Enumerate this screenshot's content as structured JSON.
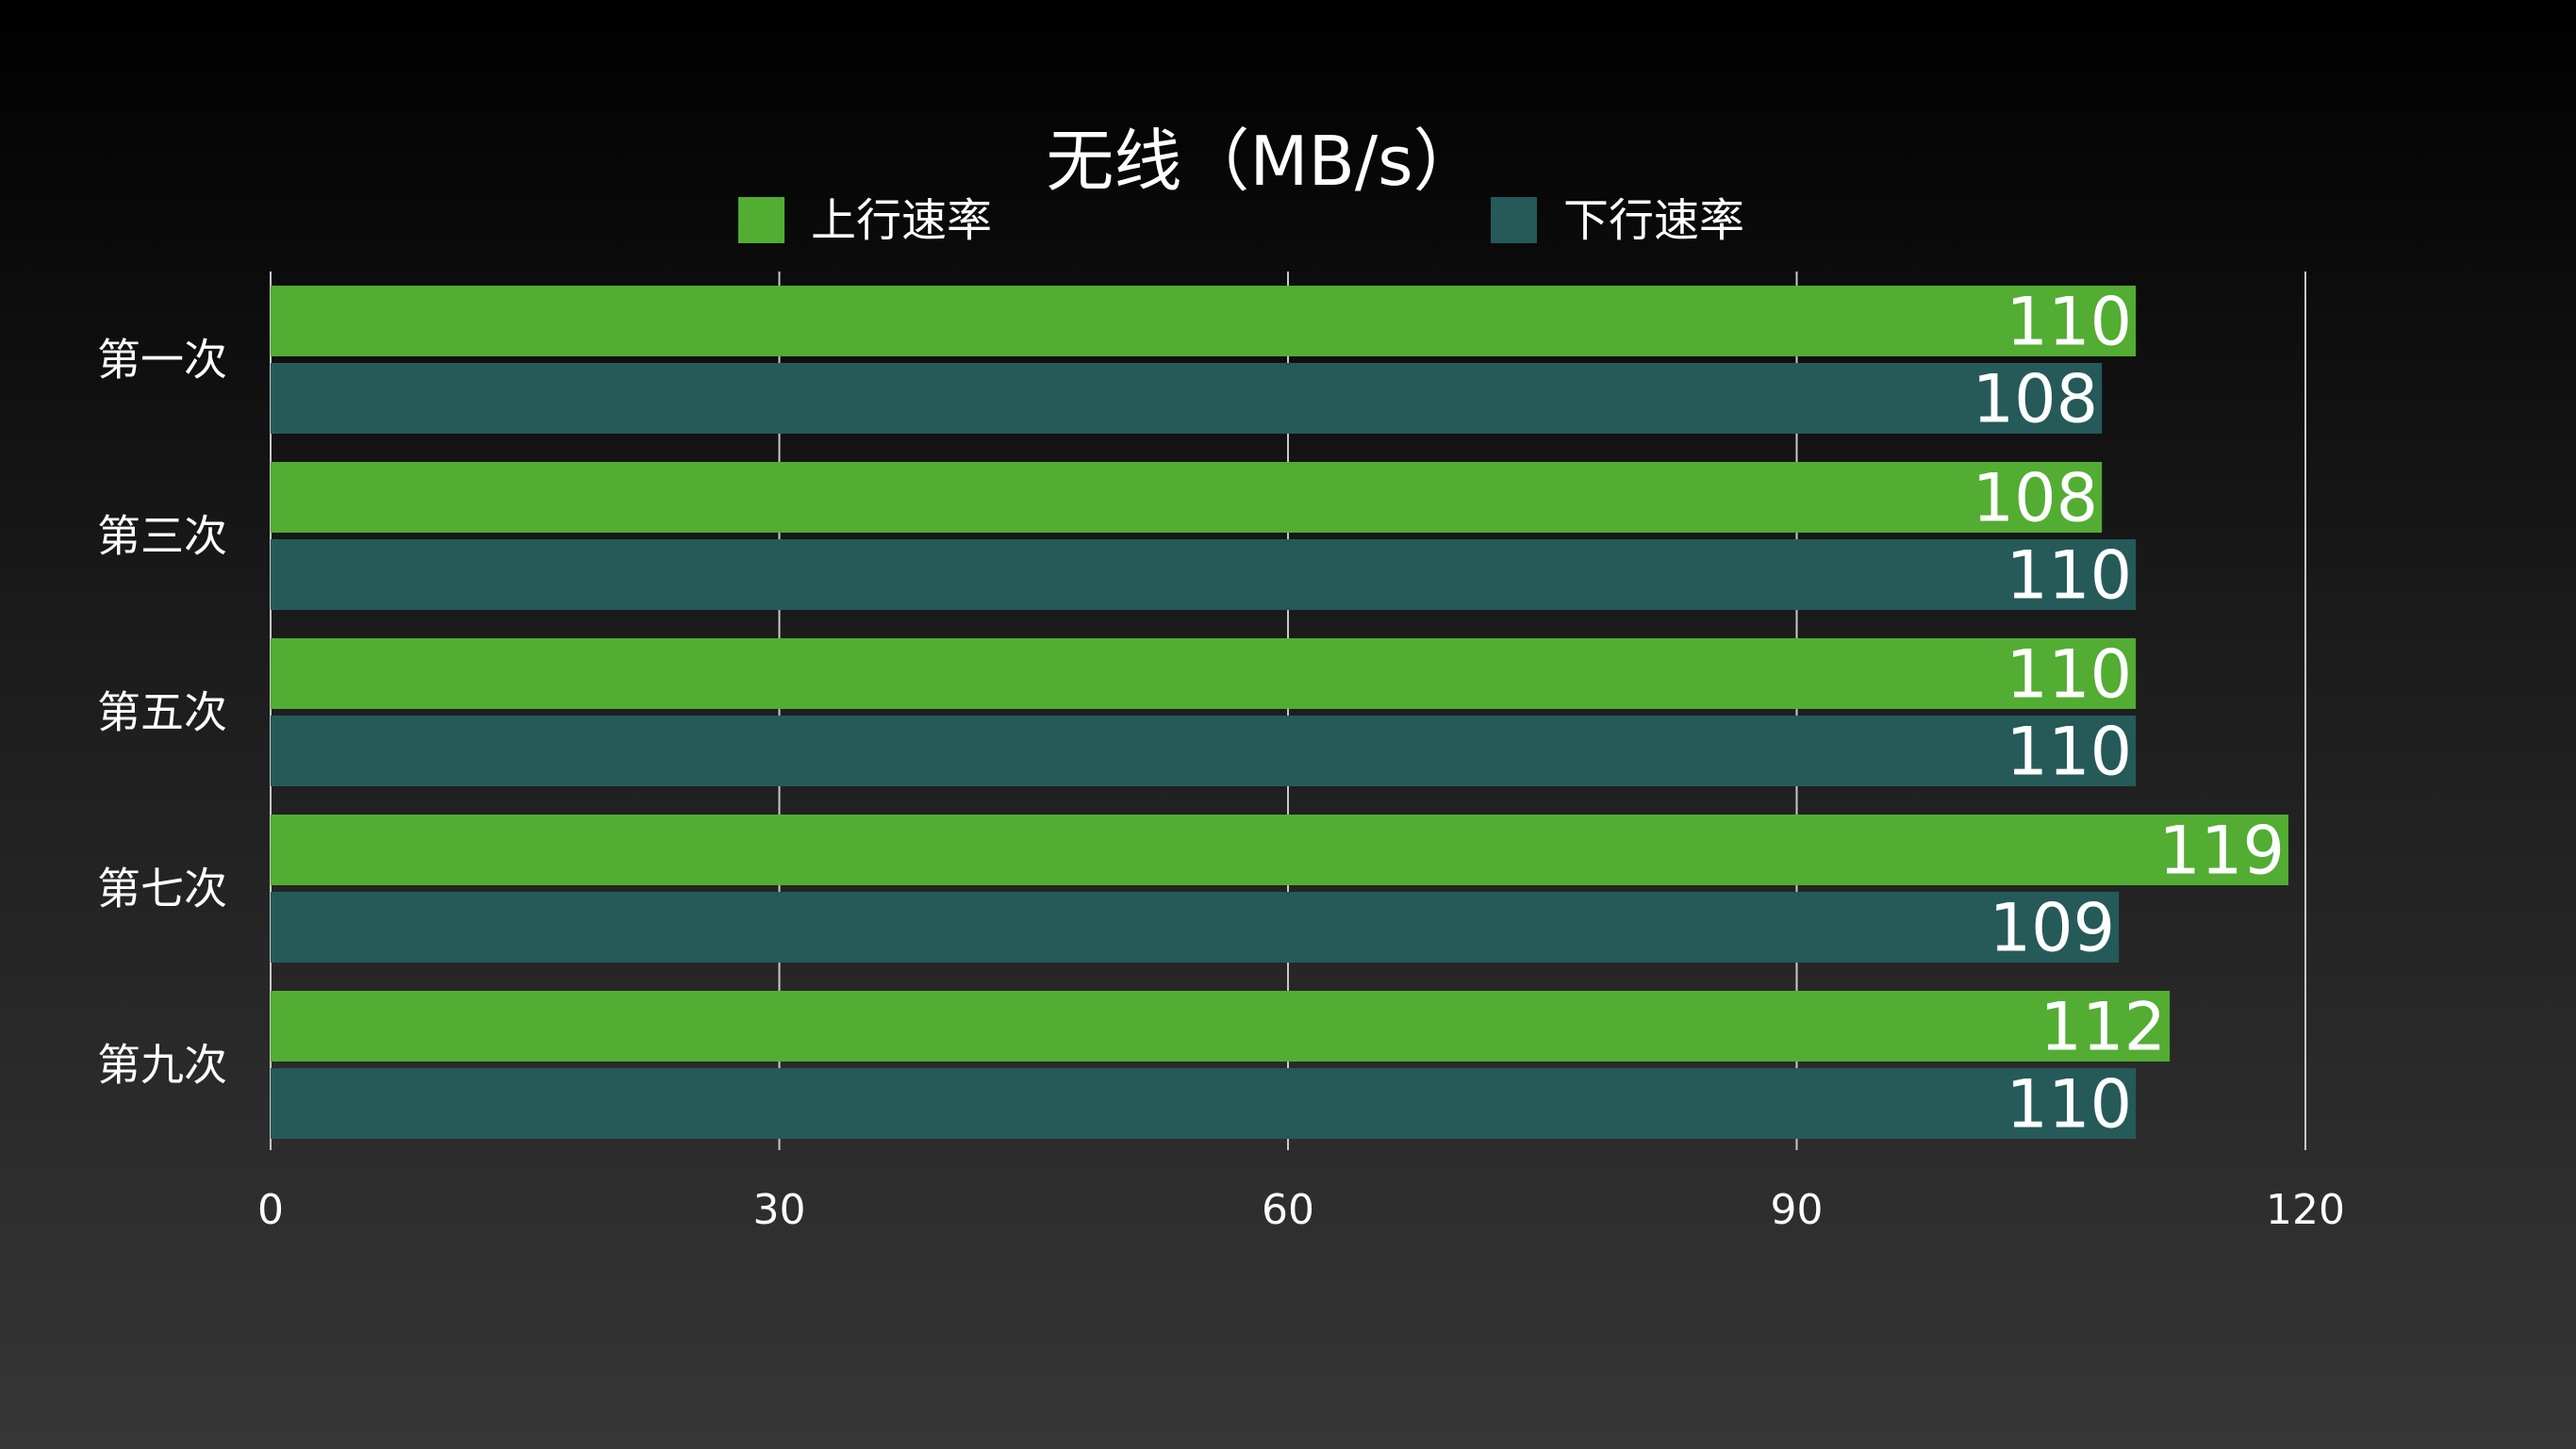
{
  "chart_data": {
    "type": "bar",
    "orientation": "horizontal",
    "title": "无线（MB/s）",
    "categories": [
      "第一次",
      "第三次",
      "第五次",
      "第七次",
      "第九次"
    ],
    "series": [
      {
        "name": "上行速率",
        "color": "#52ad32",
        "values": [
          110,
          108,
          110,
          119,
          112
        ]
      },
      {
        "name": "下行速率",
        "color": "#255a59",
        "values": [
          108,
          110,
          110,
          109,
          110
        ]
      }
    ],
    "xlim": [
      0,
      120
    ],
    "xticks": [
      "0",
      "30",
      "60",
      "90",
      "120"
    ],
    "xlabel": "",
    "ylabel": "",
    "grid": true,
    "legend_position": "top"
  }
}
